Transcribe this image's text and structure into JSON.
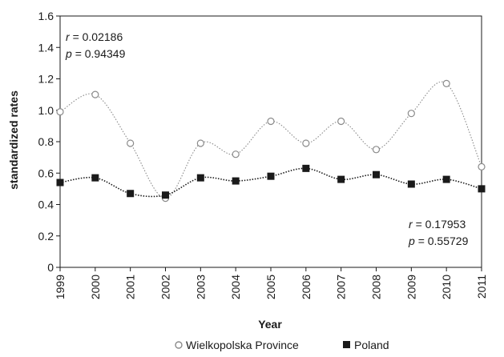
{
  "chart_data": {
    "type": "line",
    "xlabel": "Year",
    "ylabel": "standardized rates",
    "ylim": [
      0,
      1.6
    ],
    "y_ticks": [
      0,
      0.2,
      0.4,
      0.6,
      0.8,
      1.0,
      1.2,
      1.4,
      1.6
    ],
    "y_tick_labels": [
      "0",
      "0.2",
      "0.4",
      "0.6",
      "0.8",
      "1.0",
      "1.2",
      "1.4",
      "1.6"
    ],
    "x": [
      "1999",
      "2000",
      "2001",
      "2002",
      "2003",
      "2004",
      "2005",
      "2006",
      "2007",
      "2008",
      "2009",
      "2010",
      "2011"
    ],
    "grid": false,
    "legend_position": "bottom",
    "series": [
      {
        "name": "Wielkopolska Province",
        "marker": "open-circle",
        "line_style": "dotted",
        "color": "#8a8a8a",
        "values": [
          0.99,
          1.1,
          0.79,
          0.44,
          0.79,
          0.72,
          0.93,
          0.79,
          0.93,
          0.75,
          0.98,
          1.17,
          0.64
        ]
      },
      {
        "name": "Poland",
        "marker": "filled-square",
        "line_style": "dotted",
        "color": "#1a1a1a",
        "values": [
          0.54,
          0.57,
          0.47,
          0.46,
          0.57,
          0.55,
          0.58,
          0.63,
          0.56,
          0.59,
          0.53,
          0.56,
          0.5
        ]
      }
    ],
    "annotations": [
      {
        "series": "Wielkopolska Province",
        "placement": "top-left",
        "r_label": "r",
        "r_value": "= 0.02186",
        "p_label": "p",
        "p_value": "= 0.94349"
      },
      {
        "series": "Poland",
        "placement": "bottom-right",
        "r_label": "r",
        "r_value": "= 0.17953",
        "p_label": "p",
        "p_value": "= 0.55729"
      }
    ]
  }
}
